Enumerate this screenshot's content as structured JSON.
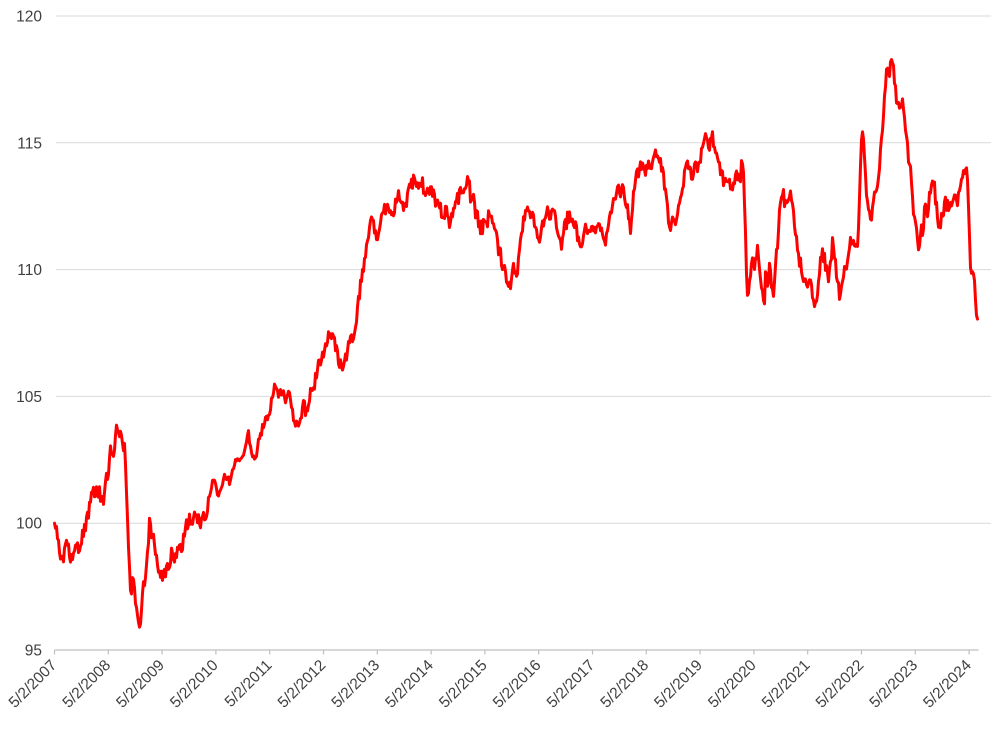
{
  "chart_data": {
    "type": "line",
    "title": "",
    "xlabel": "",
    "ylabel": "",
    "x_tick_labels": [
      "5/2/2007",
      "5/2/2008",
      "5/2/2009",
      "5/2/2010",
      "5/2/2011",
      "5/2/2012",
      "5/2/2013",
      "5/2/2014",
      "5/2/2015",
      "5/2/2016",
      "5/2/2017",
      "5/2/2018",
      "5/2/2019",
      "5/2/2020",
      "5/2/2021",
      "5/2/2022",
      "5/2/2023",
      "5/2/2024"
    ],
    "y_ticks": [
      95,
      100,
      105,
      110,
      115,
      120
    ],
    "ylim": [
      95,
      120
    ],
    "grid": "horizontal",
    "legend": "none",
    "line_color": "#ff0000",
    "gridline_color": "#d9d9d9",
    "axis_color": "#bfbfbf",
    "label_color": "#404040",
    "series_note": "single red line, index starts at 100 on 5/2/2007; t = years after 5/2/2007",
    "points": [
      [
        0,
        100
      ],
      [
        0.065,
        99.3
      ],
      [
        0.121,
        98.6
      ],
      [
        0.158,
        98.3
      ],
      [
        0.214,
        99.2
      ],
      [
        0.27,
        98.9
      ],
      [
        0.325,
        98.55
      ],
      [
        0.381,
        99.2
      ],
      [
        0.437,
        98.9
      ],
      [
        0.493,
        99.3
      ],
      [
        0.548,
        99.6
      ],
      [
        0.604,
        100.1
      ],
      [
        0.66,
        100.7
      ],
      [
        0.716,
        101.2
      ],
      [
        0.771,
        101.5
      ],
      [
        0.809,
        100.9
      ],
      [
        0.864,
        101.3
      ],
      [
        0.901,
        100.8
      ],
      [
        0.957,
        101.5
      ],
      [
        0.994,
        102
      ],
      [
        1.032,
        102.9
      ],
      [
        1.069,
        102.5
      ],
      [
        1.125,
        103.3
      ],
      [
        1.18,
        103.85
      ],
      [
        1.218,
        103.3
      ],
      [
        1.255,
        103.6
      ],
      [
        1.311,
        102.6
      ],
      [
        1.348,
        101
      ],
      [
        1.385,
        98.5
      ],
      [
        1.422,
        96.7
      ],
      [
        1.459,
        98.3
      ],
      [
        1.497,
        97
      ],
      [
        1.534,
        96.3
      ],
      [
        1.59,
        95.95
      ],
      [
        1.627,
        97.2
      ],
      [
        1.683,
        98
      ],
      [
        1.72,
        98.8
      ],
      [
        1.775,
        100.1
      ],
      [
        1.831,
        99.4
      ],
      [
        1.887,
        98.9
      ],
      [
        1.924,
        98.3
      ],
      [
        1.98,
        97.9
      ],
      [
        2.017,
        97.7
      ],
      [
        2.073,
        98.3
      ],
      [
        2.128,
        98
      ],
      [
        2.184,
        98.9
      ],
      [
        2.24,
        98.6
      ],
      [
        2.314,
        99.3
      ],
      [
        2.37,
        98.95
      ],
      [
        2.444,
        99.9
      ],
      [
        2.519,
        100.3
      ],
      [
        2.575,
        99.85
      ],
      [
        2.63,
        100.4
      ],
      [
        2.704,
        99.9
      ],
      [
        2.76,
        100.6
      ],
      [
        2.816,
        100.25
      ],
      [
        2.89,
        101.2
      ],
      [
        2.946,
        101.9
      ],
      [
        3.002,
        101.3
      ],
      [
        3.039,
        100.95
      ],
      [
        3.113,
        101.5
      ],
      [
        3.188,
        101.9
      ],
      [
        3.262,
        101.6
      ],
      [
        3.318,
        102.2
      ],
      [
        3.392,
        102.6
      ],
      [
        3.448,
        102.3
      ],
      [
        3.522,
        102.9
      ],
      [
        3.597,
        103.5
      ],
      [
        3.652,
        103
      ],
      [
        3.727,
        102.45
      ],
      [
        3.783,
        103.1
      ],
      [
        3.857,
        103.6
      ],
      [
        3.931,
        104.1
      ],
      [
        4.006,
        104.6
      ],
      [
        4.08,
        105.2
      ],
      [
        4.117,
        105.55
      ],
      [
        4.173,
        104.9
      ],
      [
        4.229,
        105.3
      ],
      [
        4.284,
        104.95
      ],
      [
        4.34,
        105.3
      ],
      [
        4.396,
        104.6
      ],
      [
        4.452,
        104.3
      ],
      [
        4.508,
        103.8
      ],
      [
        4.563,
        104.2
      ],
      [
        4.619,
        104.6
      ],
      [
        4.675,
        104.4
      ],
      [
        4.749,
        105
      ],
      [
        4.823,
        105.5
      ],
      [
        4.898,
        106.1
      ],
      [
        4.972,
        106.6
      ],
      [
        5.047,
        107.1
      ],
      [
        5.121,
        107.45
      ],
      [
        5.177,
        107.3
      ],
      [
        5.232,
        106.9
      ],
      [
        5.288,
        106.4
      ],
      [
        5.363,
        106.1
      ],
      [
        5.418,
        106.5
      ],
      [
        5.493,
        107.2
      ],
      [
        5.586,
        107.6
      ],
      [
        5.642,
        108.6
      ],
      [
        5.697,
        109.6
      ],
      [
        5.753,
        110.3
      ],
      [
        5.809,
        111
      ],
      [
        5.865,
        111.7
      ],
      [
        5.92,
        112.1
      ],
      [
        5.976,
        111.2
      ],
      [
        6.051,
        111.7
      ],
      [
        6.125,
        112.3
      ],
      [
        6.199,
        112.7
      ],
      [
        6.274,
        112.1
      ],
      [
        6.348,
        112.7
      ],
      [
        6.422,
        113
      ],
      [
        6.515,
        112.3
      ],
      [
        6.59,
        113.1
      ],
      [
        6.664,
        113.5
      ],
      [
        6.757,
        113.3
      ],
      [
        6.831,
        113.45
      ],
      [
        6.906,
        112.9
      ],
      [
        6.999,
        113.2
      ],
      [
        7.092,
        112.7
      ],
      [
        7.184,
        112.4
      ],
      [
        7.277,
        112.2
      ],
      [
        7.352,
        111.95
      ],
      [
        7.445,
        112.6
      ],
      [
        7.519,
        112.9
      ],
      [
        7.593,
        113.25
      ],
      [
        7.686,
        113.4
      ],
      [
        7.761,
        112.7
      ],
      [
        7.854,
        112.2
      ],
      [
        7.946,
        111.5
      ],
      [
        8.039,
        111.9
      ],
      [
        8.132,
        112.25
      ],
      [
        8.225,
        111.2
      ],
      [
        8.318,
        110.4
      ],
      [
        8.411,
        109.8
      ],
      [
        8.467,
        109.3
      ],
      [
        8.541,
        110.2
      ],
      [
        8.597,
        109.6
      ],
      [
        8.652,
        111.3
      ],
      [
        8.727,
        112
      ],
      [
        8.801,
        112.45
      ],
      [
        8.857,
        112.2
      ],
      [
        8.931,
        111.8
      ],
      [
        8.987,
        110.95
      ],
      [
        9.043,
        111.6
      ],
      [
        9.099,
        111.9
      ],
      [
        9.173,
        112.5
      ],
      [
        9.229,
        112
      ],
      [
        9.303,
        112.2
      ],
      [
        9.359,
        111.7
      ],
      [
        9.433,
        110.95
      ],
      [
        9.489,
        111.7
      ],
      [
        9.545,
        112.2
      ],
      [
        9.619,
        111.6
      ],
      [
        9.675,
        111.9
      ],
      [
        9.731,
        111.4
      ],
      [
        9.805,
        111.1
      ],
      [
        9.861,
        111.8
      ],
      [
        9.917,
        111.4
      ],
      [
        9.991,
        111.9
      ],
      [
        10.047,
        111.5
      ],
      [
        10.102,
        111.9
      ],
      [
        10.177,
        111.4
      ],
      [
        10.232,
        111.05
      ],
      [
        10.288,
        111.6
      ],
      [
        10.362,
        112.3
      ],
      [
        10.418,
        112.9
      ],
      [
        10.474,
        113.3
      ],
      [
        10.53,
        113
      ],
      [
        10.567,
        113.5
      ],
      [
        10.623,
        112.7
      ],
      [
        10.697,
        111.5
      ],
      [
        10.753,
        112.7
      ],
      [
        10.809,
        113.6
      ],
      [
        10.883,
        113.9
      ],
      [
        10.939,
        114.3
      ],
      [
        10.995,
        113.9
      ],
      [
        11.05,
        114.4
      ],
      [
        11.106,
        114.1
      ],
      [
        11.162,
        114.5
      ],
      [
        11.217,
        114.65
      ],
      [
        11.273,
        114.2
      ],
      [
        11.329,
        113.5
      ],
      [
        11.385,
        112.6
      ],
      [
        11.441,
        111.35
      ],
      [
        11.478,
        112.3
      ],
      [
        11.534,
        111.6
      ],
      [
        11.59,
        112.4
      ],
      [
        11.645,
        112.9
      ],
      [
        11.701,
        113.6
      ],
      [
        11.757,
        114.4
      ],
      [
        11.813,
        113.9
      ],
      [
        11.85,
        113.6
      ],
      [
        11.906,
        114.2
      ],
      [
        11.961,
        114
      ],
      [
        12.017,
        114.5
      ],
      [
        12.073,
        114.9
      ],
      [
        12.128,
        115.3
      ],
      [
        12.184,
        114.9
      ],
      [
        12.24,
        115.2
      ],
      [
        12.296,
        114.6
      ],
      [
        12.351,
        114.2
      ],
      [
        12.407,
        113.8
      ],
      [
        12.463,
        113.4
      ],
      [
        12.519,
        113.6
      ],
      [
        12.556,
        113.25
      ],
      [
        12.612,
        113.4
      ],
      [
        12.667,
        113.7
      ],
      [
        12.723,
        113.5
      ],
      [
        12.779,
        114.1
      ],
      [
        12.816,
        113.3
      ],
      [
        12.853,
        110.5
      ],
      [
        12.89,
        108.5
      ],
      [
        12.928,
        109.7
      ],
      [
        12.965,
        110.3
      ],
      [
        13.002,
        109.9
      ],
      [
        13.058,
        110.9
      ],
      [
        13.095,
        110.2
      ],
      [
        13.151,
        109
      ],
      [
        13.188,
        108.7
      ],
      [
        13.225,
        109.9
      ],
      [
        13.262,
        109.4
      ],
      [
        13.299,
        110.3
      ],
      [
        13.337,
        108.8
      ],
      [
        13.374,
        109.3
      ],
      [
        13.43,
        110.9
      ],
      [
        13.485,
        112.3
      ],
      [
        13.541,
        113.05
      ],
      [
        13.578,
        112.4
      ],
      [
        13.634,
        112.6
      ],
      [
        13.671,
        112.9
      ],
      [
        13.727,
        112.4
      ],
      [
        13.764,
        111.6
      ],
      [
        13.82,
        110.6
      ],
      [
        13.876,
        110.2
      ],
      [
        13.932,
        109.7
      ],
      [
        14.006,
        109.4
      ],
      [
        14.062,
        109.9
      ],
      [
        14.099,
        108.9
      ],
      [
        14.155,
        108.3
      ],
      [
        14.211,
        109.9
      ],
      [
        14.266,
        110.8
      ],
      [
        14.322,
        110.3
      ],
      [
        14.396,
        109.5
      ],
      [
        14.433,
        110.4
      ],
      [
        14.471,
        111.2
      ],
      [
        14.526,
        110
      ],
      [
        14.601,
        108.9
      ],
      [
        14.656,
        109.6
      ],
      [
        14.712,
        110.1
      ],
      [
        14.768,
        110.8
      ],
      [
        14.824,
        111.3
      ],
      [
        14.879,
        110.7
      ],
      [
        14.935,
        111.1
      ],
      [
        14.991,
        114.5
      ],
      [
        15.009,
        115.5
      ],
      [
        15.046,
        114.8
      ],
      [
        15.084,
        113.2
      ],
      [
        15.121,
        112.4
      ],
      [
        15.176,
        112
      ],
      [
        15.214,
        112.5
      ],
      [
        15.251,
        113.3
      ],
      [
        15.288,
        112.9
      ],
      [
        15.344,
        114.4
      ],
      [
        15.399,
        115.8
      ],
      [
        15.437,
        117
      ],
      [
        15.474,
        118.1
      ],
      [
        15.511,
        117.6
      ],
      [
        15.548,
        118.25
      ],
      [
        15.585,
        117.9
      ],
      [
        15.623,
        117.4
      ],
      [
        15.66,
        116.6
      ],
      [
        15.697,
        116.8
      ],
      [
        15.734,
        116.3
      ],
      [
        15.771,
        116.5
      ],
      [
        15.808,
        115.9
      ],
      [
        15.846,
        115.3
      ],
      [
        15.883,
        114.3
      ],
      [
        15.939,
        113.4
      ],
      [
        15.976,
        112.2
      ],
      [
        16.013,
        111.7
      ],
      [
        16.05,
        111.4
      ],
      [
        16.069,
        110.8
      ],
      [
        16.106,
        111.9
      ],
      [
        16.143,
        111.4
      ],
      [
        16.18,
        112.4
      ],
      [
        16.217,
        112.2
      ],
      [
        16.255,
        112.8
      ],
      [
        16.31,
        113.4
      ],
      [
        16.348,
        113.5
      ],
      [
        16.385,
        112.6
      ],
      [
        16.422,
        112
      ],
      [
        16.459,
        111.75
      ],
      [
        16.515,
        112.3
      ],
      [
        16.552,
        112.75
      ],
      [
        16.608,
        112.4
      ],
      [
        16.645,
        112.8
      ],
      [
        16.701,
        112.5
      ],
      [
        16.757,
        112.9
      ],
      [
        16.794,
        112.7
      ],
      [
        16.831,
        113.2
      ],
      [
        16.887,
        113.6
      ],
      [
        16.924,
        113.9
      ],
      [
        16.961,
        113.85
      ],
      [
        16.998,
        112
      ],
      [
        17.017,
        110.4
      ],
      [
        17.035,
        109.95
      ],
      [
        17.072,
        109.8
      ],
      [
        17.091,
        110
      ],
      [
        17.11,
        109
      ],
      [
        17.147,
        108.1
      ],
      [
        17.165,
        108
      ]
    ]
  }
}
